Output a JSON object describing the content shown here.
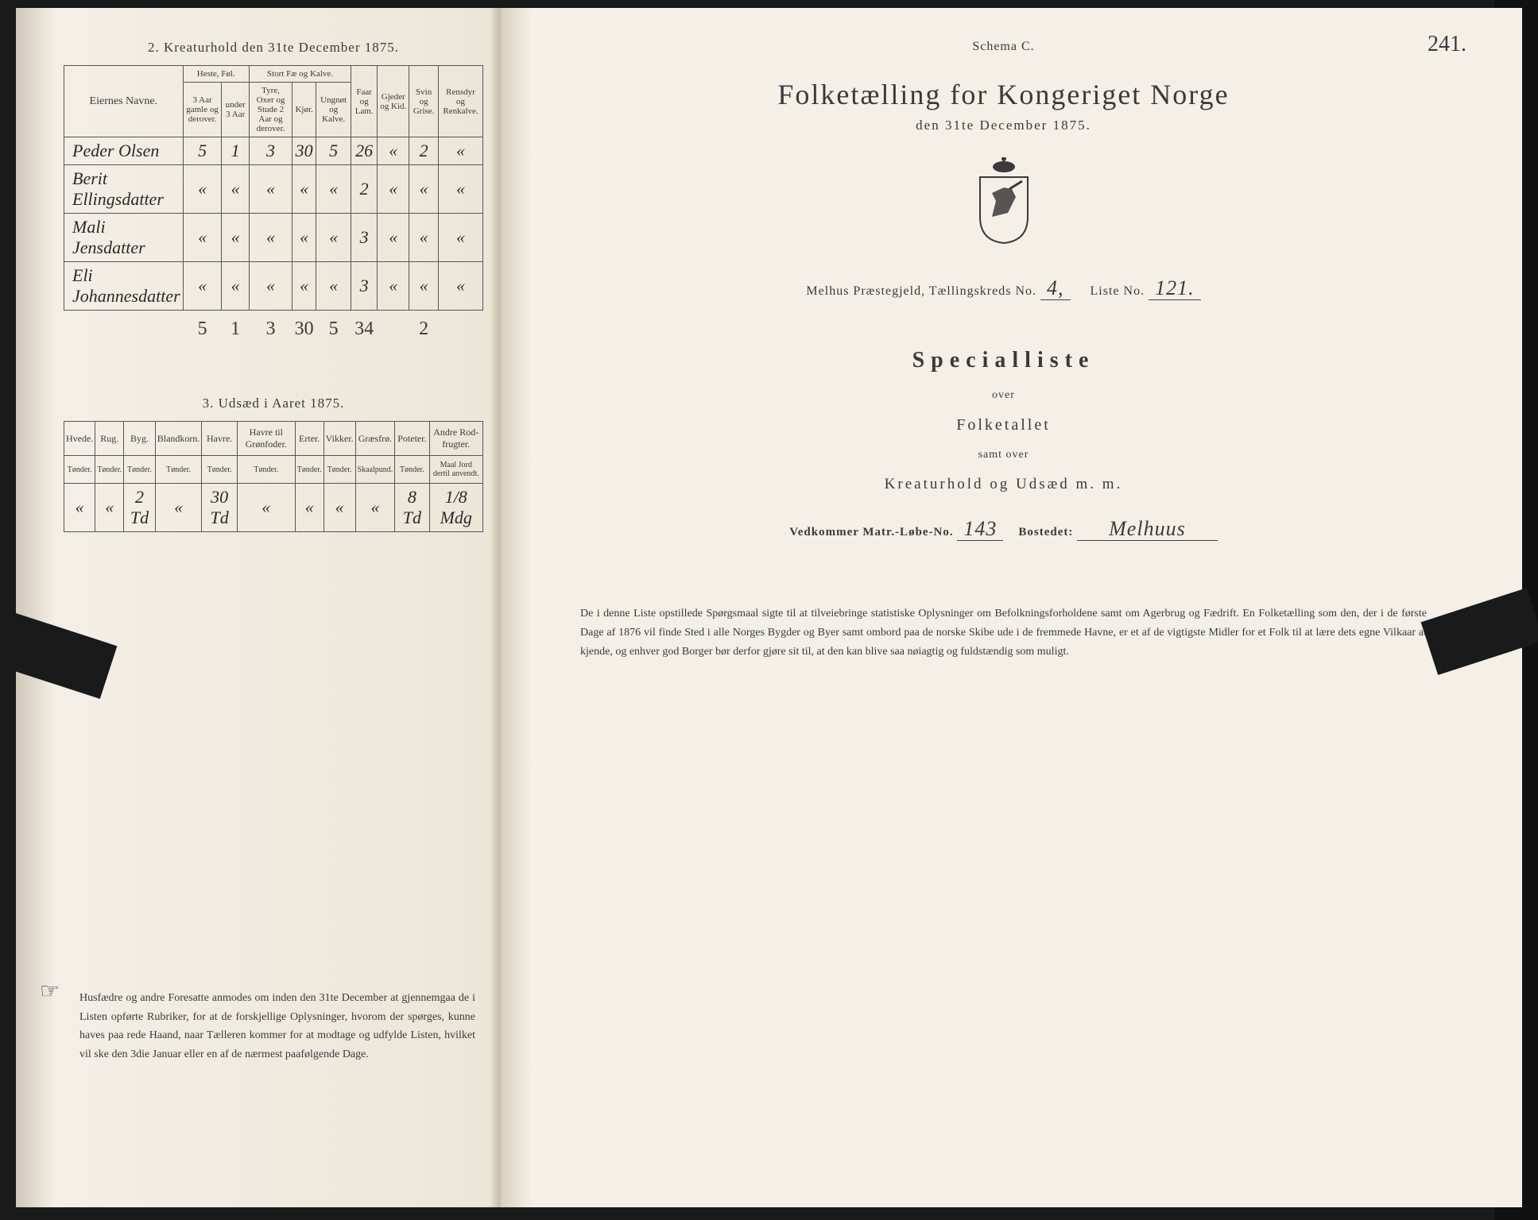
{
  "left": {
    "kreaturhold_title": "2.   Kreaturhold den 31te December 1875.",
    "table2": {
      "headers": {
        "name": "Eiernes Navne.",
        "heste": "Heste, Føl.",
        "heste_a": "3 Aar gamle og derover.",
        "heste_b": "under 3 Aar",
        "stort": "Stort Fæ og Kalve.",
        "stort_a": "Tyre, Oxer og Stude 2 Aar og derover.",
        "stort_b": "Kjør.",
        "stort_c": "Ungnøt og Kalve.",
        "faar": "Faar og Lam.",
        "gjeder": "Gjeder og Kid.",
        "svin": "Svin og Grise.",
        "rens": "Rensdyr og Renkalve."
      },
      "rows": [
        {
          "name": "Peder Olsen",
          "c": [
            "5",
            "1",
            "3",
            "30",
            "5",
            "26",
            "«",
            "2",
            "«"
          ]
        },
        {
          "name": "Berit Ellingsdatter",
          "c": [
            "«",
            "«",
            "«",
            "«",
            "«",
            "2",
            "«",
            "«",
            "«"
          ]
        },
        {
          "name": "Mali Jensdatter",
          "c": [
            "«",
            "«",
            "«",
            "«",
            "«",
            "3",
            "«",
            "«",
            "«"
          ]
        },
        {
          "name": "Eli Johannesdatter",
          "c": [
            "«",
            "«",
            "«",
            "«",
            "«",
            "3",
            "«",
            "«",
            "«"
          ]
        }
      ],
      "totals": [
        "5",
        "1",
        "3",
        "30",
        "5",
        "34",
        "",
        "2",
        ""
      ]
    },
    "udsaed_title": "3.   Udsæd i Aaret 1875.",
    "table3": {
      "headers": [
        "Hvede.",
        "Rug.",
        "Byg.",
        "Blandkorn.",
        "Havre.",
        "Havre til Grønfoder.",
        "Erter.",
        "Vikker.",
        "Græsfrø.",
        "Poteter.",
        "Andre Rod-frugter."
      ],
      "sub": [
        "Tønder.",
        "Tønder.",
        "Tønder.",
        "Tønder.",
        "Tønder.",
        "Tønder.",
        "Tønder.",
        "Tønder.",
        "Skaalpund.",
        "Tønder.",
        "Maal Jord dertil anvendt."
      ],
      "row": [
        "«",
        "«",
        "2 Td",
        "«",
        "30 Td",
        "«",
        "«",
        "«",
        "«",
        "8 Td",
        "1/8 Mdg"
      ]
    },
    "footer": "Husfædre og andre Foresatte anmodes om inden den 31te December at gjennemgaa de i Listen opførte Rubriker, for at de forskjellige Oplysninger, hvorom der spørges, kunne haves paa rede Haand, naar Tælleren kommer for at modtage og udfylde Listen, hvilket vil ske den 3die Januar eller en af de nærmest paafølgende Dage."
  },
  "right": {
    "schema": "Schema C.",
    "page_num": "241.",
    "main_title": "Folketælling for Kongeriget Norge",
    "sub_title": "den 31te December 1875.",
    "meta": {
      "prefix": "Melhus Præstegjeld, Tællingskreds No.",
      "kreds": "4,",
      "liste_label": "Liste No.",
      "liste": "121."
    },
    "special": "Specialliste",
    "over": "over",
    "folketallet": "Folketallet",
    "samt": "samt over",
    "kreatur": "Kreaturhold og Udsæd m. m.",
    "vedk": {
      "label1": "Vedkommer Matr.-Løbe-No.",
      "val1": "143",
      "label2": "Bostedet:",
      "val2": "Melhuus"
    },
    "footer": "De i denne Liste opstillede Spørgsmaal sigte til at tilveiebringe statistiske Oplysninger om Befolkningsforholdene samt om Agerbrug og Fædrift.  En Folketælling som den, der i de første Dage af 1876 vil finde Sted i alle Norges Bygder og Byer samt ombord paa de norske Skibe ude i de fremmede Havne, er et af de vigtigste Midler for et Folk til at lære dets egne Vilkaar at kjende, og enhver god Borger bør derfor gjøre sit til, at den kan blive saa nøiagtig og fuldstændig som muligt."
  }
}
